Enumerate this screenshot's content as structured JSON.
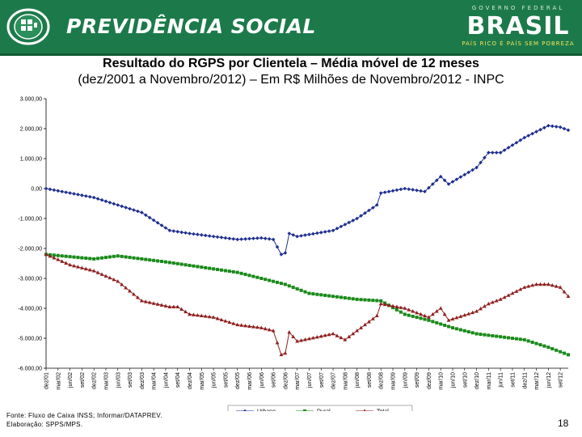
{
  "header": {
    "brand": "PREVIDÊNCIA SOCIAL",
    "gov_top": "GOVERNO FEDERAL",
    "gov_country": "BRASIL",
    "gov_slogan": "PAÍS RICO É PAÍS SEM POBREZA",
    "colors": {
      "bar": "#1c7a4a",
      "bar_line": "#0f5a33"
    }
  },
  "title_line1": "Resultado do RGPS por Clientela – Média móvel de 12 meses",
  "title_line2": "(dez/2001 a Novembro/2012) – Em R$ Milhões de Novembro/2012 - INPC",
  "footer": {
    "source": "Fonte: Fluxo de Caixa INSS; Informar/DATAPREV.",
    "prepared": "Elaboração: SPPS/MPS."
  },
  "page_number": "18",
  "chart_data": {
    "type": "line",
    "x_start": "dez/01",
    "x_end": "nov/12",
    "x_frequency": "monthly",
    "ylim": [
      -6000,
      3000
    ],
    "yticks": [
      3000,
      2000,
      1000,
      0,
      -1000,
      -2000,
      -3000,
      -4000,
      -5000,
      -6000
    ],
    "ytick_labels": [
      "3.000,00",
      "2.000,00",
      "1.000,00",
      "0,00",
      "-1.000,00",
      "-2.000,00",
      "-3.000,00",
      "-4.000,00",
      "-5.000,00",
      "-6.000,00"
    ],
    "xtick_labels": [
      "dez/01",
      "mar/02",
      "jun/02",
      "set/02",
      "dez/02",
      "mar/03",
      "jun/03",
      "set/03",
      "dez/03",
      "mar/04",
      "jun/04",
      "set/04",
      "dez/04",
      "mar/05",
      "jun/05",
      "set/05",
      "dez/05",
      "mar/06",
      "jun/06",
      "set/06",
      "dez/06",
      "mar/07",
      "jun/07",
      "set/07",
      "dez/07",
      "mar/08",
      "jun/08",
      "set/08",
      "dez/08",
      "mar/09",
      "jun/09",
      "set/09",
      "dez/09",
      "mar/10",
      "jun/10",
      "set/10",
      "dez/10",
      "mar/11",
      "jun/11",
      "set/11",
      "dez/11",
      "mar/12",
      "jun/12",
      "set/12"
    ],
    "grid": false,
    "legend_position": "bottom",
    "series": [
      {
        "name": "Urbano",
        "color": "#1f2f8f",
        "marker": "diamond",
        "anchors": [
          [
            "dez/01",
            0
          ],
          [
            "dez/02",
            -300
          ],
          [
            "dez/03",
            -800
          ],
          [
            "jul/04",
            -1400
          ],
          [
            "dez/04",
            -1500
          ],
          [
            "jun/05",
            -1600
          ],
          [
            "dez/05",
            -1700
          ],
          [
            "jun/06",
            -1650
          ],
          [
            "set/06",
            -1700
          ],
          [
            "nov/06",
            -2200
          ],
          [
            "dez/06",
            -2150
          ],
          [
            "jan/07",
            -1500
          ],
          [
            "mar/07",
            -1600
          ],
          [
            "dez/07",
            -1400
          ],
          [
            "jun/08",
            -1000
          ],
          [
            "nov/08",
            -550
          ],
          [
            "dez/08",
            -150
          ],
          [
            "jun/09",
            0
          ],
          [
            "nov/09",
            -100
          ],
          [
            "mar/10",
            400
          ],
          [
            "mai/10",
            150
          ],
          [
            "dez/10",
            700
          ],
          [
            "mar/11",
            1200
          ],
          [
            "jun/11",
            1200
          ],
          [
            "dez/11",
            1700
          ],
          [
            "jun/12",
            2100
          ],
          [
            "set/12",
            2050
          ],
          [
            "nov/12",
            1950
          ]
        ]
      },
      {
        "name": "Rural",
        "color": "#1a8a1a",
        "marker": "square",
        "anchors": [
          [
            "dez/01",
            -2200
          ],
          [
            "dez/02",
            -2350
          ],
          [
            "jun/03",
            -2250
          ],
          [
            "jun/04",
            -2450
          ],
          [
            "dez/05",
            -2800
          ],
          [
            "dez/06",
            -3200
          ],
          [
            "jun/07",
            -3500
          ],
          [
            "dez/07",
            -3600
          ],
          [
            "jun/08",
            -3700
          ],
          [
            "dez/08",
            -3750
          ],
          [
            "jun/09",
            -4200
          ],
          [
            "dez/09",
            -4400
          ],
          [
            "jun/10",
            -4650
          ],
          [
            "dez/10",
            -4850
          ],
          [
            "jun/11",
            -4950
          ],
          [
            "dez/11",
            -5050
          ],
          [
            "jun/12",
            -5300
          ],
          [
            "nov/12",
            -5550
          ]
        ]
      },
      {
        "name": "Total",
        "color": "#8f1f1f",
        "marker": "triangle",
        "anchors": [
          [
            "dez/01",
            -2200
          ],
          [
            "jun/02",
            -2550
          ],
          [
            "dez/02",
            -2750
          ],
          [
            "jun/03",
            -3100
          ],
          [
            "dez/03",
            -3750
          ],
          [
            "jul/04",
            -3950
          ],
          [
            "set/04",
            -3950
          ],
          [
            "dez/04",
            -4200
          ],
          [
            "jun/05",
            -4300
          ],
          [
            "dez/05",
            -4550
          ],
          [
            "jun/06",
            -4650
          ],
          [
            "set/06",
            -4750
          ],
          [
            "nov/06",
            -5550
          ],
          [
            "dez/06",
            -5500
          ],
          [
            "jan/07",
            -4800
          ],
          [
            "mar/07",
            -5100
          ],
          [
            "dez/07",
            -4850
          ],
          [
            "mar/08",
            -5050
          ],
          [
            "jun/08",
            -4750
          ],
          [
            "nov/08",
            -4250
          ],
          [
            "dez/08",
            -3850
          ],
          [
            "jun/09",
            -4000
          ],
          [
            "dez/09",
            -4300
          ],
          [
            "mar/10",
            -4000
          ],
          [
            "mai/10",
            -4400
          ],
          [
            "dez/10",
            -4100
          ],
          [
            "mar/11",
            -3850
          ],
          [
            "jun/11",
            -3700
          ],
          [
            "dez/11",
            -3300
          ],
          [
            "mar/12",
            -3200
          ],
          [
            "jun/12",
            -3200
          ],
          [
            "set/12",
            -3300
          ],
          [
            "nov/12",
            -3600
          ]
        ]
      }
    ]
  }
}
